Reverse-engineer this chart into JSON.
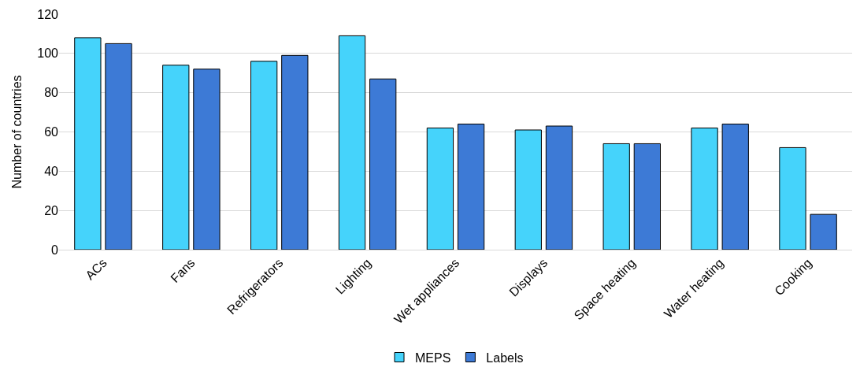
{
  "chart_data": {
    "type": "bar",
    "ylabel": "Number of countries",
    "categories": [
      "ACs",
      "Fans",
      "Refrigerators",
      "Lighting",
      "Wet appliances",
      "Displays",
      "Space heating",
      "Water heating",
      "Cooking"
    ],
    "series": [
      {
        "name": "MEPS",
        "color": "#45d3fb",
        "values": [
          108,
          94,
          96,
          109,
          62,
          61,
          54,
          62,
          52
        ]
      },
      {
        "name": "Labels",
        "color": "#3d7ad6",
        "values": [
          105,
          92,
          99,
          87,
          64,
          63,
          54,
          64,
          18
        ]
      }
    ],
    "ylim": [
      0,
      120
    ],
    "yticks": [
      0,
      20,
      40,
      60,
      80,
      100,
      120
    ],
    "grid": "y",
    "legend": "bottom"
  }
}
